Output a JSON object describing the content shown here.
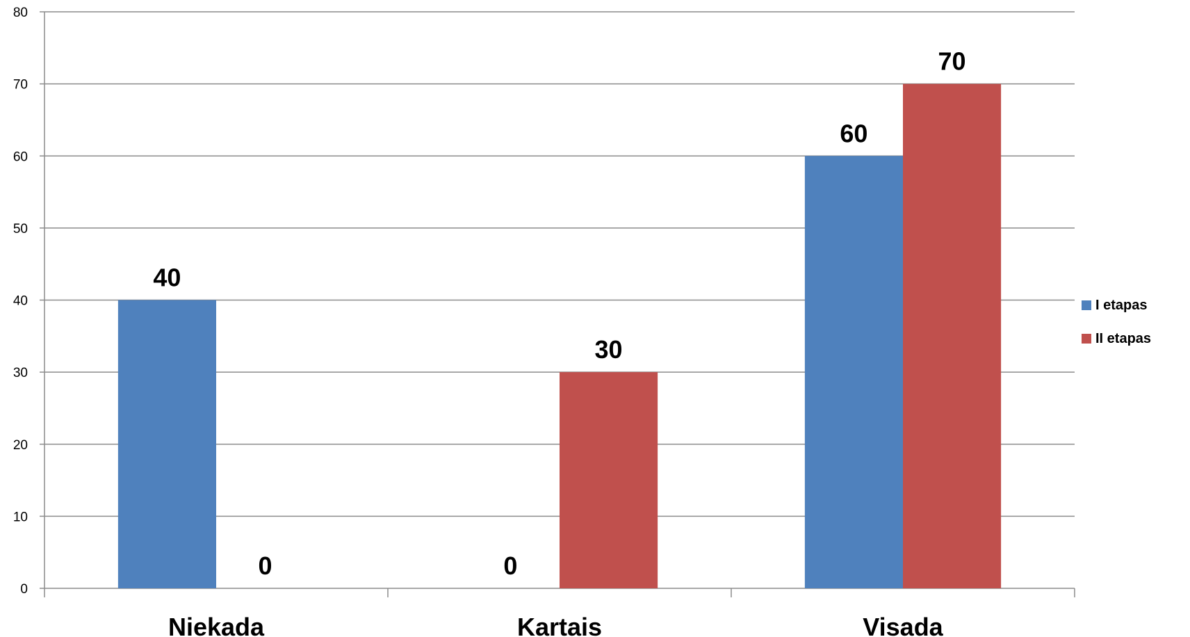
{
  "chart_data": {
    "type": "bar",
    "categories": [
      "Niekada",
      "Kartais",
      "Visada"
    ],
    "series": [
      {
        "name": "I etapas",
        "values": [
          40,
          0,
          60
        ],
        "color": "#4F81BD"
      },
      {
        "name": "II etapas",
        "values": [
          0,
          30,
          70
        ],
        "color": "#C0504D"
      }
    ],
    "ylim": [
      0,
      80
    ],
    "yticks": [
      "0",
      "10",
      "20",
      "30",
      "40",
      "50",
      "60",
      "70",
      "80"
    ],
    "data_labels": true,
    "grid": true,
    "legend_position": "right",
    "title": "",
    "xlabel": "",
    "ylabel": ""
  }
}
